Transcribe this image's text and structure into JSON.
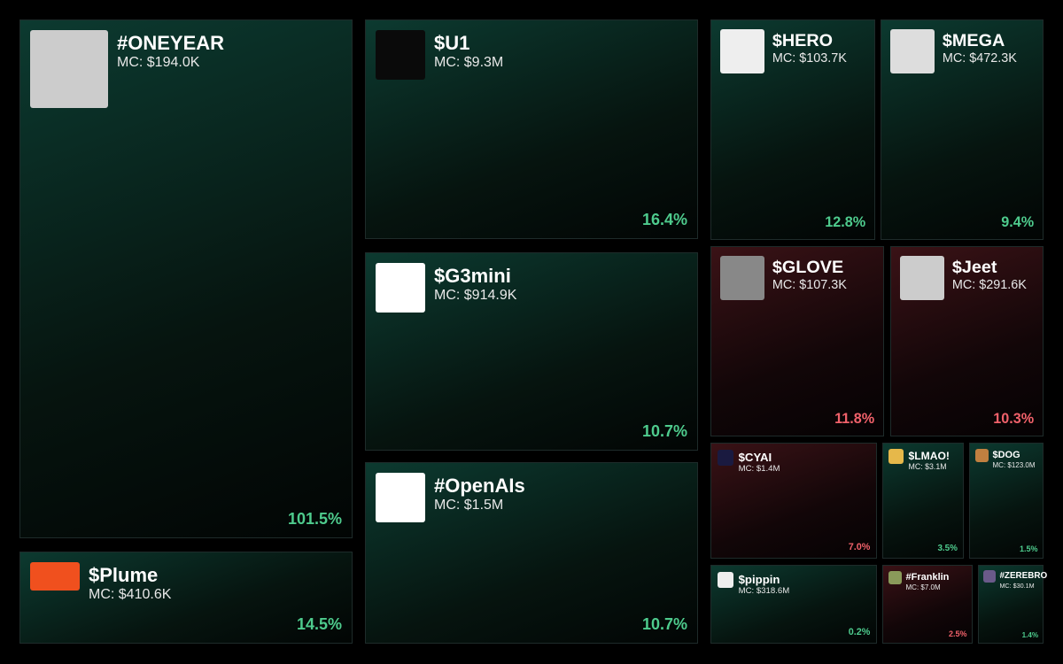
{
  "tiles": [
    {
      "name": "#ONEYEAR",
      "mc": "MC: $194.0K",
      "change": "101.5%",
      "color": "#4ecb8d"
    },
    {
      "name": "$Plume",
      "mc": "MC: $410.6K",
      "change": "14.5%",
      "color": "#4ecb8d"
    },
    {
      "name": "$U1",
      "mc": "MC: $9.3M",
      "change": "16.4%",
      "color": "#4ecb8d"
    },
    {
      "name": "$G3mini",
      "mc": "MC: $914.9K",
      "change": "10.7%",
      "color": "#4ecb8d"
    },
    {
      "name": "#OpenAIs",
      "mc": "MC: $1.5M",
      "change": "10.7%",
      "color": "#4ecb8d"
    },
    {
      "name": "$HERO",
      "mc": "MC: $103.7K",
      "change": "12.8%",
      "color": "#4ecb8d"
    },
    {
      "name": "$MEGA",
      "mc": "MC: $472.3K",
      "change": "9.4%",
      "color": "#4ecb8d"
    },
    {
      "name": "$GLOVE",
      "mc": "MC: $107.3K",
      "change": "11.8%",
      "color": "#f0616a"
    },
    {
      "name": "$Jeet",
      "mc": "MC: $291.6K",
      "change": "10.3%",
      "color": "#f0616a"
    },
    {
      "name": "$CYAI",
      "mc": "MC: $1.4M",
      "change": "7.0%",
      "color": "#f0616a"
    },
    {
      "name": "$LMAO!",
      "mc": "MC: $3.1M",
      "change": "3.5%",
      "color": "#4ecb8d"
    },
    {
      "name": "$DOG",
      "mc": "MC: $123.0M",
      "change": "1.5%",
      "color": "#4ecb8d"
    },
    {
      "name": "$pippin",
      "mc": "MC: $318.6M",
      "change": "0.2%",
      "color": "#4ecb8d"
    },
    {
      "name": "#Franklin",
      "mc": "MC: $7.0M",
      "change": "2.5%",
      "color": "#f0616a"
    },
    {
      "name": "#ZEREBRO",
      "mc": "MC: $30.1M",
      "change": "1.4%",
      "color": "#4ecb8d"
    }
  ]
}
